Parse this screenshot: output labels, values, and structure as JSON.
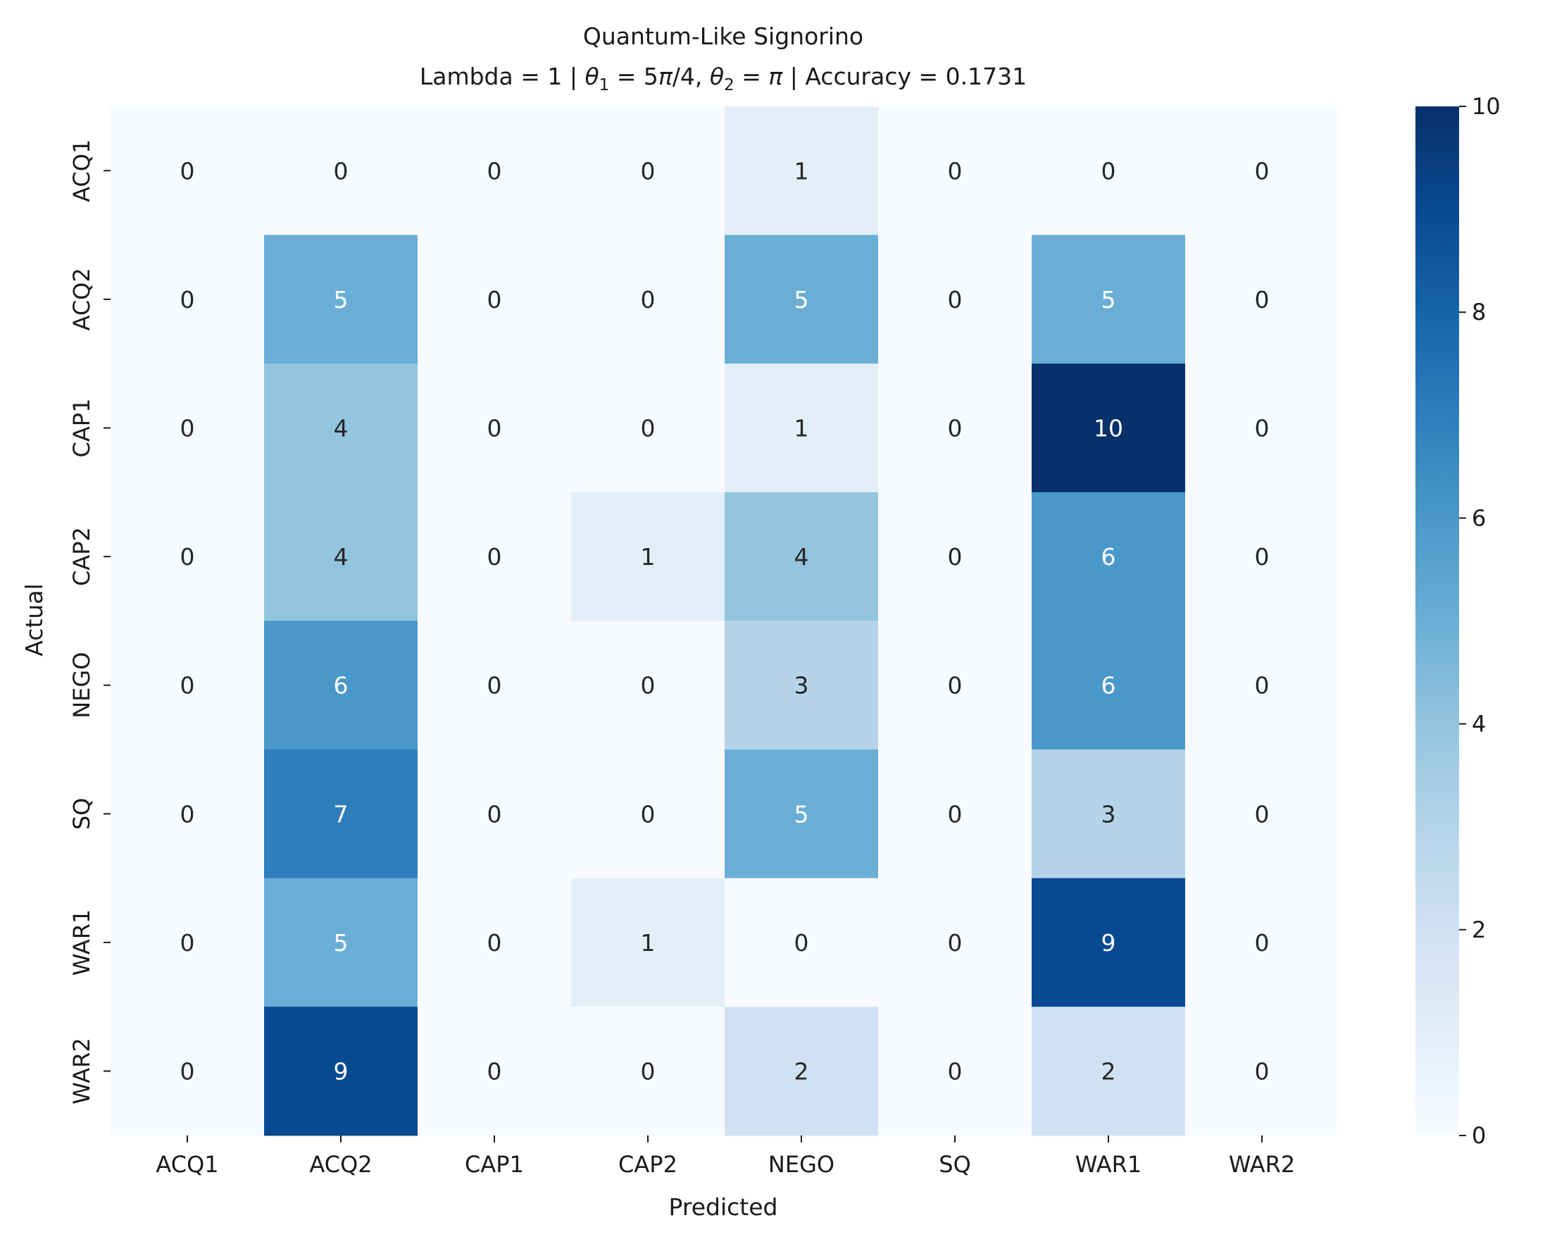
{
  "chart_data": {
    "type": "heatmap",
    "title": "Quantum-Like Signorino",
    "subtitle_parts": {
      "p1": "Lambda = 1 | ",
      "theta1_sym": "θ",
      "theta1_sub": "1",
      "p2": " = 5",
      "pi1": "π",
      "p3": "/4, ",
      "theta2_sym": "θ",
      "theta2_sub": "2",
      "p4": " = ",
      "pi2": "π",
      "p5": " | Accuracy =  0.1731"
    },
    "xlabel": "Predicted",
    "ylabel": "Actual",
    "x_categories": [
      "ACQ1",
      "ACQ2",
      "CAP1",
      "CAP2",
      "NEGO",
      "SQ",
      "WAR1",
      "WAR2"
    ],
    "y_categories": [
      "ACQ1",
      "ACQ2",
      "CAP1",
      "CAP2",
      "NEGO",
      "SQ",
      "WAR1",
      "WAR2"
    ],
    "values": [
      [
        0,
        0,
        0,
        0,
        1,
        0,
        0,
        0
      ],
      [
        0,
        5,
        0,
        0,
        5,
        0,
        5,
        0
      ],
      [
        0,
        4,
        0,
        0,
        1,
        0,
        10,
        0
      ],
      [
        0,
        4,
        0,
        1,
        4,
        0,
        6,
        0
      ],
      [
        0,
        6,
        0,
        0,
        3,
        0,
        6,
        0
      ],
      [
        0,
        7,
        0,
        0,
        5,
        0,
        3,
        0
      ],
      [
        0,
        5,
        0,
        1,
        0,
        0,
        9,
        0
      ],
      [
        0,
        9,
        0,
        0,
        2,
        0,
        2,
        0
      ]
    ],
    "colormap": "Blues",
    "colorbar": {
      "min": 0,
      "max": 10,
      "ticks": [
        "0",
        "2",
        "4",
        "6",
        "8",
        "10"
      ]
    },
    "colors": {
      "0": "#f7fbff",
      "1": "#e3eef9",
      "2": "#cfe1f2",
      "3": "#b5d4e9",
      "4": "#93c4de",
      "5": "#6aaed6",
      "6": "#4a98c9",
      "7": "#2e7ebc",
      "8": "#1764ab",
      "9": "#084a91",
      "10": "#08306b"
    }
  }
}
